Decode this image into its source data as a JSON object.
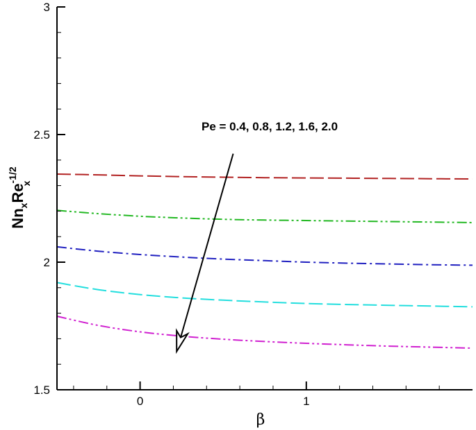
{
  "chart_data": {
    "type": "line",
    "title": "",
    "xlabel": "β",
    "ylabel": {
      "base1": "Nn",
      "sub1": "x",
      "base2": "Re",
      "sub2": "x",
      "sup2": "-1/2"
    },
    "xlim": [
      -0.5,
      2.0
    ],
    "ylim": [
      1.5,
      3.0
    ],
    "x_major_ticks": [
      0,
      1
    ],
    "x_major_tick_labels": [
      "0",
      "1"
    ],
    "x_minor_ticks": [
      -0.4,
      -0.2,
      0.2,
      0.4,
      0.6,
      0.8,
      1.2,
      1.4,
      1.6,
      1.8
    ],
    "y_major_ticks": [
      1.5,
      2.0,
      2.5,
      3.0
    ],
    "y_major_tick_labels": [
      "1.5",
      "2",
      "2.5",
      "3"
    ],
    "y_minor_ticks": [
      1.6,
      1.7,
      1.8,
      1.9,
      2.1,
      2.2,
      2.3,
      2.4,
      2.6,
      2.7,
      2.8,
      2.9
    ],
    "grid": false,
    "x": [
      -0.5,
      -0.25,
      0.0,
      0.25,
      0.5,
      0.75,
      1.0,
      1.25,
      1.5,
      1.75,
      2.0
    ],
    "series": [
      {
        "color": "#b22222",
        "dash": "long-dash",
        "values": [
          2.345,
          2.342,
          2.338,
          2.335,
          2.333,
          2.331,
          2.33,
          2.329,
          2.328,
          2.327,
          2.326
        ]
      },
      {
        "color": "#22b822",
        "dash": "dash-dot-dot",
        "values": [
          2.203,
          2.19,
          2.18,
          2.173,
          2.168,
          2.165,
          2.163,
          2.161,
          2.159,
          2.157,
          2.155
        ]
      },
      {
        "color": "#2020c0",
        "dash": "dash-dot",
        "values": [
          2.06,
          2.043,
          2.03,
          2.02,
          2.012,
          2.006,
          2.0,
          1.996,
          1.993,
          1.99,
          1.988
        ]
      },
      {
        "color": "#22dede",
        "dash": "long-dash",
        "values": [
          1.92,
          1.892,
          1.873,
          1.86,
          1.851,
          1.844,
          1.838,
          1.834,
          1.831,
          1.828,
          1.825
        ]
      },
      {
        "color": "#d020d0",
        "dash": "dash-dot-dot",
        "values": [
          1.788,
          1.752,
          1.727,
          1.71,
          1.698,
          1.689,
          1.682,
          1.676,
          1.671,
          1.667,
          1.663
        ]
      }
    ],
    "annotation": {
      "text": "Pe = 0.4, 0.8, 1.2, 1.6, 2.0",
      "arrow_from": [
        0.56,
        2.425
      ],
      "arrow_to": [
        0.22,
        1.65
      ]
    }
  }
}
